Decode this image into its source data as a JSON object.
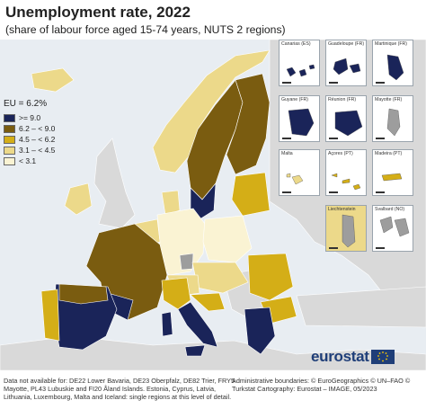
{
  "title": "Unemployment rate, 2022",
  "subtitle": "(share of labour force aged 15-74 years, NUTS 2 regions)",
  "legend": {
    "title": "EU = 6.2%",
    "items": [
      {
        "label": ">= 9.0",
        "color": "#1a2459"
      },
      {
        "label": "6.2 – < 9.0",
        "color": "#7a5c10"
      },
      {
        "label": "4.5 – < 6.2",
        "color": "#d4ae17"
      },
      {
        "label": "3.1 – < 4.5",
        "color": "#ecd98a"
      },
      {
        "label": "< 3.1",
        "color": "#faf3d3"
      }
    ]
  },
  "colors": {
    "sea": "#e8edf2",
    "non_eu_land": "#d9d9d9",
    "no_data": "#9d9d9d",
    "border": "#ffffff"
  },
  "insets": [
    {
      "label": "Canarias (ES)",
      "color": "#1a2459"
    },
    {
      "label": "Guadeloupe (FR)",
      "color": "#1a2459"
    },
    {
      "label": "Martinique (FR)",
      "color": "#1a2459"
    },
    {
      "label": "Guyane (FR)",
      "color": "#1a2459"
    },
    {
      "label": "Réunion (FR)",
      "color": "#1a2459"
    },
    {
      "label": "Mayotte (FR)",
      "color": "#9d9d9d"
    },
    {
      "label": "Malta",
      "color": "#ecd98a"
    },
    {
      "label": "Açores (PT)",
      "color": "#d4ae17"
    },
    {
      "label": "Madeira (PT)",
      "color": "#d4ae17"
    },
    {
      "label": "Liechtenstein",
      "color": "#9d9d9d"
    },
    {
      "label": "Svalbard (NO)",
      "color": "#9d9d9d"
    }
  ],
  "footer_note": "Data not available for: DE22 Lower Bavaria, DE23 Oberpfalz, DE82 Trier, FRY5 Mayotte, PL43 Lubuskie and FI20 Åland Islands. Estonia, Cyprus, Latvia, Lithuania, Luxembourg, Malta and Iceland: single regions at this level of detail.",
  "admin_note": "Administrative boundaries: © EuroGeographics © UN–FAO © Turkstat Cartography: Eurostat – IMAGE, 05/2023",
  "logo": "eurostat"
}
